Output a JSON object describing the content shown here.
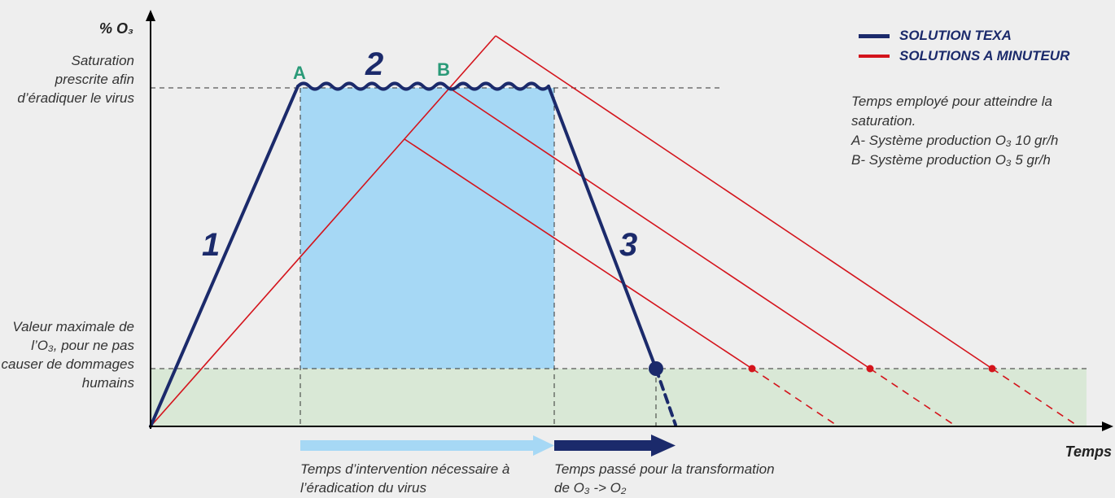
{
  "y_axis_title": "% O₃",
  "x_axis_title": "Temps",
  "saturation_label": "Saturation prescrite afin d’éradiquer le virus",
  "max_value_label": "Valeur maximale de l’O₃, pour ne pas causer de dommages humains",
  "phase_labels": [
    "1",
    "2",
    "3"
  ],
  "point_labels": {
    "a": "A",
    "b": "B"
  },
  "legend": [
    {
      "label": "SOLUTION TEXA",
      "color": "#1b2a6b"
    },
    {
      "label": "SOLUTIONS A MINUTEUR",
      "color": "#d4141c"
    }
  ],
  "info": {
    "text": "Temps employé pour atteindre la saturation.",
    "line_a": "A- Système production O₃ 10 gr/h",
    "line_b": "B- Système production O₃ 5 gr/h"
  },
  "arrow_labels": {
    "intervention": "Temps d’intervention nécessaire à l’éradication du virus",
    "transformation": "Temps passé pour la transformation de O₃ -> O₂"
  },
  "colors": {
    "texa": "#1b2a6b",
    "timer": "#d4141c",
    "intervention_zone": "#a6d8f5",
    "safe_zone": "#d9e8d6",
    "intervention_arrow": "#a6d8f5",
    "transformation_arrow": "#1b2a6b",
    "point_label": "#2a9a78"
  }
}
